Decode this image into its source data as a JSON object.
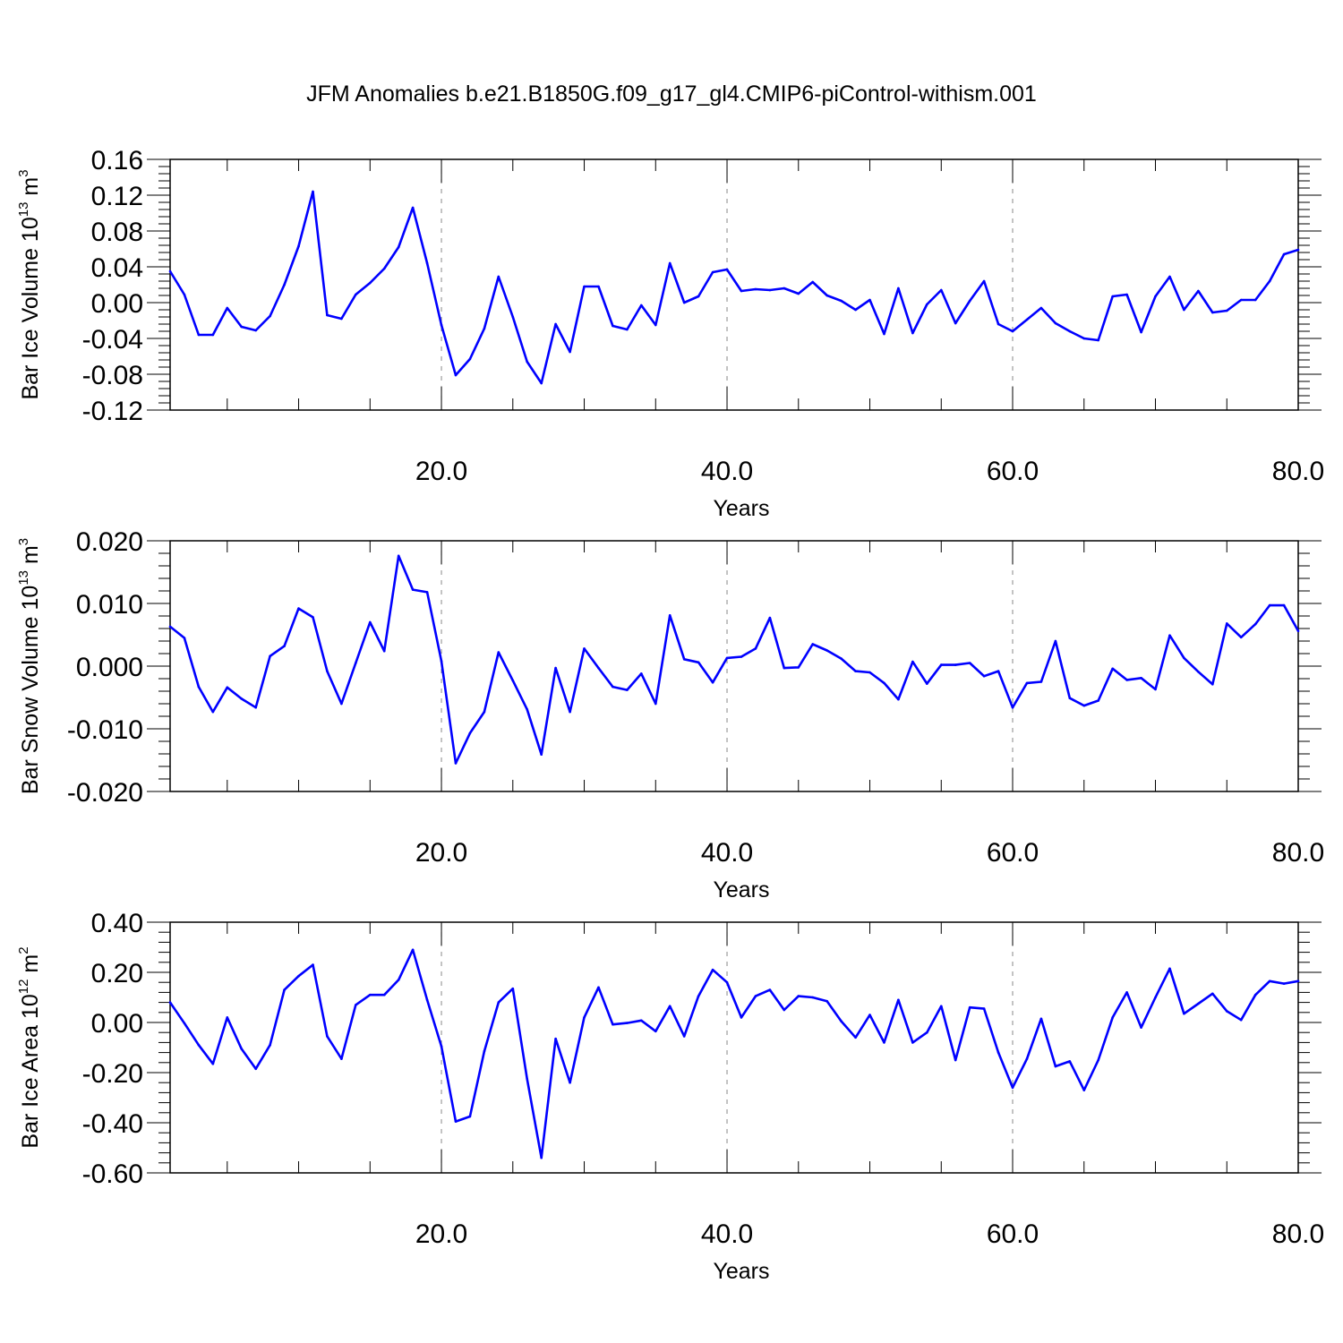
{
  "title": "JFM Anomalies b.e21.B1850G.f09_g17_gl4.CMIP6-piControl-withism.001",
  "colors": {
    "series": "#0000ff",
    "axis": "#000000",
    "grid": "#888888",
    "background": "#ffffff"
  },
  "chart_data": [
    {
      "type": "line",
      "xlabel": "Years",
      "ylabel": {
        "prefix": "Bar Ice Volume 10",
        "exponent": "13",
        "unit_base": " m",
        "unit_exponent": "3"
      },
      "xlim": [
        1,
        80
      ],
      "ylim": [
        -0.12,
        0.16
      ],
      "xticks": [
        20,
        40,
        60,
        80
      ],
      "xtick_labels": [
        "20.0",
        "40.0",
        "60.0",
        "80.0"
      ],
      "yticks": [
        -0.12,
        -0.08,
        -0.04,
        0.0,
        0.04,
        0.08,
        0.12,
        0.16
      ],
      "ytick_labels": [
        "-0.12",
        "-0.08",
        "-0.04",
        "0.00",
        "0.04",
        "0.08",
        "0.12",
        "0.16"
      ],
      "grid": "dashed vertical lines at 20, 40, 60",
      "x": [
        1,
        2,
        3,
        4,
        5,
        6,
        7,
        8,
        9,
        10,
        11,
        12,
        13,
        14,
        15,
        16,
        17,
        18,
        19,
        20,
        21,
        22,
        23,
        24,
        25,
        26,
        27,
        28,
        29,
        30,
        31,
        32,
        33,
        34,
        35,
        36,
        37,
        38,
        39,
        40,
        41,
        42,
        43,
        44,
        45,
        46,
        47,
        48,
        49,
        50,
        51,
        52,
        53,
        54,
        55,
        56,
        57,
        58,
        59,
        60,
        61,
        62,
        63,
        64,
        65,
        66,
        67,
        68,
        69,
        70,
        71,
        72,
        73,
        74,
        75,
        76,
        77,
        78,
        79,
        80
      ],
      "values": [
        0.035,
        0.009,
        -0.036,
        -0.036,
        -0.006,
        -0.027,
        -0.031,
        -0.015,
        0.02,
        0.063,
        0.124,
        -0.014,
        -0.018,
        0.009,
        0.022,
        0.038,
        0.062,
        0.106,
        0.044,
        -0.025,
        -0.081,
        -0.063,
        -0.029,
        0.029,
        -0.016,
        -0.066,
        -0.09,
        -0.024,
        -0.055,
        0.018,
        0.018,
        -0.026,
        -0.03,
        -0.003,
        -0.025,
        0.044,
        0.0,
        0.007,
        0.034,
        0.037,
        0.013,
        0.015,
        0.014,
        0.016,
        0.01,
        0.023,
        0.008,
        0.002,
        -0.008,
        0.003,
        -0.035,
        0.016,
        -0.034,
        -0.002,
        0.014,
        -0.023,
        0.002,
        0.024,
        -0.024,
        -0.032,
        -0.019,
        -0.006,
        -0.023,
        -0.032,
        -0.04,
        -0.042,
        0.007,
        0.009,
        -0.033,
        0.007,
        0.029,
        -0.008,
        0.013,
        -0.011,
        -0.009,
        0.003,
        0.003,
        0.024,
        0.054,
        0.059
      ]
    },
    {
      "type": "line",
      "xlabel": "Years",
      "ylabel": {
        "prefix": "Bar Snow Volume 10",
        "exponent": "13",
        "unit_base": " m",
        "unit_exponent": "3"
      },
      "xlim": [
        1,
        80
      ],
      "ylim": [
        -0.02,
        0.02
      ],
      "xticks": [
        20,
        40,
        60,
        80
      ],
      "xtick_labels": [
        "20.0",
        "40.0",
        "60.0",
        "80.0"
      ],
      "yticks": [
        -0.02,
        -0.01,
        0.0,
        0.01,
        0.02
      ],
      "ytick_labels": [
        "-0.020",
        "-0.010",
        "0.000",
        "0.010",
        "0.020"
      ],
      "grid": "dashed vertical lines at 20, 40, 60",
      "x": [
        1,
        2,
        3,
        4,
        5,
        6,
        7,
        8,
        9,
        10,
        11,
        12,
        13,
        14,
        15,
        16,
        17,
        18,
        19,
        20,
        21,
        22,
        23,
        24,
        25,
        26,
        27,
        28,
        29,
        30,
        31,
        32,
        33,
        34,
        35,
        36,
        37,
        38,
        39,
        40,
        41,
        42,
        43,
        44,
        45,
        46,
        47,
        48,
        49,
        50,
        51,
        52,
        53,
        54,
        55,
        56,
        57,
        58,
        59,
        60,
        61,
        62,
        63,
        64,
        65,
        66,
        67,
        68,
        69,
        70,
        71,
        72,
        73,
        74,
        75,
        76,
        77,
        78,
        79,
        80
      ],
      "values": [
        0.0063,
        0.0045,
        -0.0033,
        -0.0073,
        -0.0034,
        -0.0052,
        -0.0066,
        0.0016,
        0.0032,
        0.0092,
        0.0078,
        -0.0008,
        -0.006,
        0.0005,
        0.007,
        0.0024,
        0.0176,
        0.0122,
        0.0118,
        0.0008,
        -0.0155,
        -0.0107,
        -0.0073,
        0.0022,
        -0.0023,
        -0.0069,
        -0.0141,
        -0.0003,
        -0.0073,
        0.0028,
        -0.0003,
        -0.0033,
        -0.0038,
        -0.0012,
        -0.006,
        0.0081,
        0.0011,
        0.0006,
        -0.0026,
        0.0013,
        0.0015,
        0.0028,
        0.0077,
        -0.0003,
        -0.0002,
        0.0035,
        0.0025,
        0.0012,
        -0.0008,
        -0.001,
        -0.0027,
        -0.0053,
        0.0007,
        -0.0028,
        0.0002,
        0.0002,
        0.0005,
        -0.0016,
        -0.0008,
        -0.0066,
        -0.0027,
        -0.0025,
        0.004,
        -0.0051,
        -0.0063,
        -0.0055,
        -0.0004,
        -0.0022,
        -0.0019,
        -0.0037,
        0.0049,
        0.0013,
        -0.0009,
        -0.0029,
        0.0068,
        0.0046,
        0.0067,
        0.0097,
        0.0097,
        0.0056
      ]
    },
    {
      "type": "line",
      "xlabel": "Years",
      "ylabel": {
        "prefix": "Bar Ice Area 10",
        "exponent": "12",
        "unit_base": " m",
        "unit_exponent": "2"
      },
      "xlim": [
        1,
        80
      ],
      "ylim": [
        -0.6,
        0.4
      ],
      "xticks": [
        20,
        40,
        60,
        80
      ],
      "xtick_labels": [
        "20.0",
        "40.0",
        "60.0",
        "80.0"
      ],
      "yticks": [
        -0.6,
        -0.4,
        -0.2,
        0.0,
        0.2,
        0.4
      ],
      "ytick_labels": [
        "-0.60",
        "-0.40",
        "-0.20",
        "0.00",
        "0.20",
        "0.40"
      ],
      "grid": "dashed vertical lines at 20, 40, 60",
      "x": [
        1,
        2,
        3,
        4,
        5,
        6,
        7,
        8,
        9,
        10,
        11,
        12,
        13,
        14,
        15,
        16,
        17,
        18,
        19,
        20,
        21,
        22,
        23,
        24,
        25,
        26,
        27,
        28,
        29,
        30,
        31,
        32,
        33,
        34,
        35,
        36,
        37,
        38,
        39,
        40,
        41,
        42,
        43,
        44,
        45,
        46,
        47,
        48,
        49,
        50,
        51,
        52,
        53,
        54,
        55,
        56,
        57,
        58,
        59,
        60,
        61,
        62,
        63,
        64,
        65,
        66,
        67,
        68,
        69,
        70,
        71,
        72,
        73,
        74,
        75,
        76,
        77,
        78,
        79,
        80
      ],
      "values": [
        0.08,
        -0.003,
        -0.09,
        -0.165,
        0.02,
        -0.105,
        -0.185,
        -0.09,
        0.13,
        0.185,
        0.23,
        -0.055,
        -0.145,
        0.07,
        0.11,
        0.11,
        0.17,
        0.29,
        0.09,
        -0.095,
        -0.395,
        -0.375,
        -0.115,
        0.08,
        0.135,
        -0.225,
        -0.54,
        -0.065,
        -0.24,
        0.02,
        0.14,
        -0.008,
        -0.002,
        0.008,
        -0.035,
        0.065,
        -0.055,
        0.105,
        0.21,
        0.16,
        0.02,
        0.105,
        0.13,
        0.05,
        0.105,
        0.1,
        0.085,
        0.005,
        -0.06,
        0.03,
        -0.08,
        0.09,
        -0.08,
        -0.04,
        0.065,
        -0.15,
        0.06,
        0.055,
        -0.12,
        -0.26,
        -0.145,
        0.015,
        -0.175,
        -0.155,
        -0.27,
        -0.15,
        0.02,
        0.12,
        -0.02,
        0.1,
        0.215,
        0.035,
        0.075,
        0.115,
        0.045,
        0.01,
        0.11,
        0.165,
        0.155,
        0.165
      ]
    }
  ]
}
